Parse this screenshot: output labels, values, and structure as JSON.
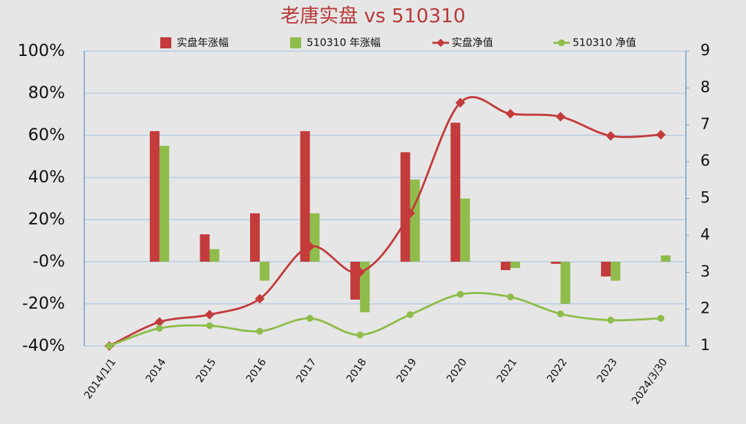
{
  "chart_data": {
    "type": "bar_line",
    "title": "老唐实盘 vs 510310",
    "categories": [
      "2014/1/1",
      "2014",
      "2015",
      "2016",
      "2017",
      "2018",
      "2019",
      "2020",
      "2021",
      "2022",
      "2023",
      "2024/3/30"
    ],
    "series": [
      {
        "name": "实盘年涨幅",
        "type": "bar",
        "color": "#c33b3b",
        "values": [
          null,
          62,
          13,
          23,
          62,
          -18,
          52,
          66,
          -4,
          -1,
          -7,
          null
        ]
      },
      {
        "name": "510310 年涨幅",
        "type": "bar",
        "color": "#8fbc4b",
        "values": [
          null,
          55,
          6,
          -9,
          23,
          -24,
          39,
          30,
          -3,
          -20,
          -9,
          3
        ]
      },
      {
        "name": "实盘净值",
        "type": "line",
        "axis": "y2",
        "marker": "diamond",
        "color": "#c33b3b",
        "values": [
          1.0,
          1.65,
          1.85,
          2.28,
          3.7,
          3.0,
          4.6,
          7.6,
          7.3,
          7.22,
          6.7,
          6.73
        ]
      },
      {
        "name": "510310 净值",
        "type": "line",
        "axis": "y2",
        "marker": "circle",
        "color": "#8fbc4b",
        "values": [
          1.0,
          1.48,
          1.55,
          1.4,
          1.75,
          1.3,
          1.85,
          2.4,
          2.33,
          1.87,
          1.7,
          1.75
        ]
      }
    ],
    "ylim": [
      -40,
      100
    ],
    "yticks": [
      {
        "value": -40,
        "label": "-40%"
      },
      {
        "value": -20,
        "label": "-20%"
      },
      {
        "value": 0,
        "label": "-0%"
      },
      {
        "value": 20,
        "label": "20%"
      },
      {
        "value": 40,
        "label": "40%"
      },
      {
        "value": 60,
        "label": "60%"
      },
      {
        "value": 80,
        "label": "80%"
      },
      {
        "value": 100,
        "label": "100%"
      }
    ],
    "y2lim": [
      1,
      9
    ],
    "y2ticks": [
      1,
      2,
      3,
      4,
      5,
      6,
      7,
      8,
      9
    ],
    "grid": true,
    "legend": "top"
  }
}
